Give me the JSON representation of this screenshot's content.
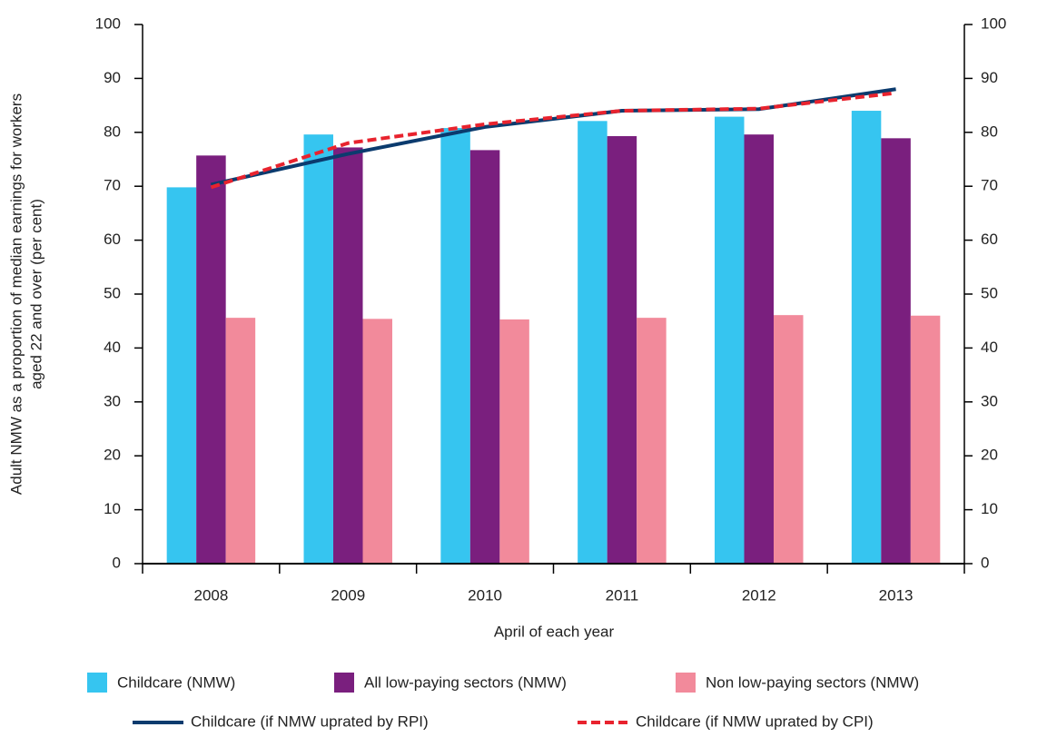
{
  "chart_data": {
    "type": "bar",
    "ylabel": [
      "Adult NMW as a proportion of median earnings for workers",
      "aged 22 and over (per cent)"
    ],
    "xlabel": "April of each year",
    "categories": [
      "2008",
      "2009",
      "2010",
      "2011",
      "2012",
      "2013"
    ],
    "ylim": [
      0,
      100
    ],
    "yticks": [
      0,
      10,
      20,
      30,
      40,
      50,
      60,
      70,
      80,
      90,
      100
    ],
    "y2lim": [
      0,
      100
    ],
    "y2ticks": [
      0,
      10,
      20,
      30,
      40,
      50,
      60,
      70,
      80,
      90,
      100
    ],
    "series": [
      {
        "name": "Childcare (NMW)",
        "type": "bar",
        "color": "#36c5f0",
        "values": [
          69.8,
          79.6,
          80.8,
          82.1,
          82.9,
          84.0
        ]
      },
      {
        "name": "All low-paying sectors (NMW)",
        "type": "bar",
        "color": "#7a1f7e",
        "values": [
          75.7,
          77.2,
          76.7,
          79.3,
          79.6,
          78.9
        ]
      },
      {
        "name": "Non low-paying sectors (NMW)",
        "type": "bar",
        "color": "#f28a9b",
        "values": [
          45.6,
          45.4,
          45.3,
          45.6,
          46.1,
          46.0
        ]
      },
      {
        "name": "Childcare (if NMW uprated by RPI)",
        "type": "line",
        "style": "solid",
        "color": "#0b3b6e",
        "values": [
          70.3,
          76.0,
          81.0,
          84.0,
          84.3,
          88.0
        ]
      },
      {
        "name": "Childcare (if NMW uprated by CPI)",
        "type": "line",
        "style": "dashed",
        "color": "#e8232e",
        "values": [
          69.8,
          78.0,
          81.5,
          84.0,
          84.4,
          87.3
        ]
      }
    ]
  }
}
